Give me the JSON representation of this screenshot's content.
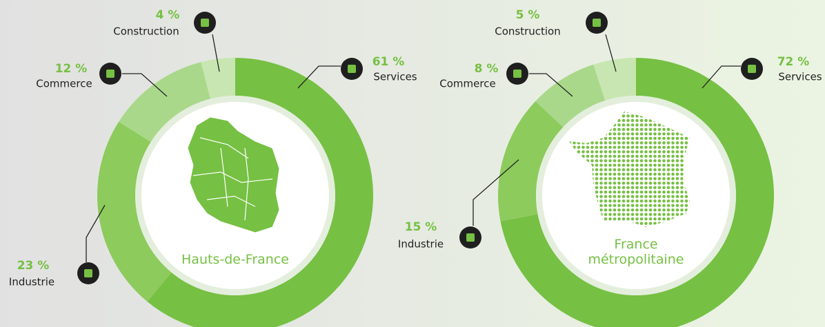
{
  "chart_data": [
    {
      "type": "pie",
      "title": "Hauts-de-France",
      "categories": [
        "Services",
        "Industrie",
        "Commerce",
        "Construction"
      ],
      "values": [
        61,
        23,
        12,
        4
      ],
      "value_labels": [
        "61 %",
        "23 %",
        "12 %",
        "4 %"
      ],
      "colors": [
        "#76c043",
        "#8ccb5c",
        "#a9d88a",
        "#c8e6b1"
      ]
    },
    {
      "type": "pie",
      "title": "France métropolitaine",
      "categories": [
        "Services",
        "Industrie",
        "Commerce",
        "Construction"
      ],
      "values": [
        72,
        15,
        8,
        5
      ],
      "value_labels": [
        "72 %",
        "15 %",
        "8 %",
        "5 %"
      ],
      "colors": [
        "#76c043",
        "#8ccb5c",
        "#a9d88a",
        "#c8e6b1"
      ]
    }
  ]
}
